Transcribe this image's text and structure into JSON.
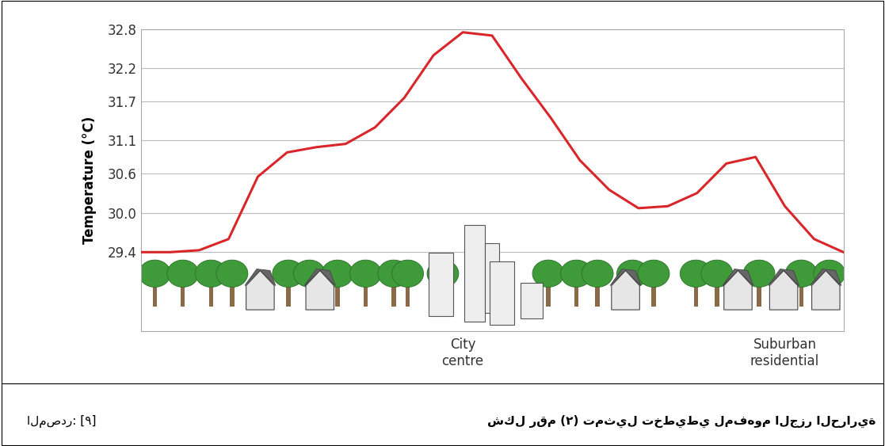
{
  "chart_data": {
    "type": "line",
    "y_label": "Temperature (°C)",
    "categories": [
      null,
      null,
      null,
      null,
      null,
      null,
      null,
      null,
      null,
      null,
      null,
      "City centre",
      null,
      null,
      null,
      null,
      null,
      null,
      null,
      null,
      null,
      null,
      "Suburban residential",
      null,
      null
    ],
    "values": [
      29.4,
      29.4,
      29.43,
      29.6,
      30.55,
      30.92,
      31.0,
      31.05,
      31.3,
      31.75,
      32.4,
      32.75,
      32.7,
      32.05,
      31.45,
      30.8,
      30.35,
      30.07,
      30.1,
      30.3,
      30.75,
      30.85,
      30.1,
      29.6,
      29.4
    ],
    "color": "#d9262b",
    "ylim": [
      28.2,
      32.8
    ],
    "yticks": [
      29.4,
      30.0,
      30.6,
      31.1,
      31.7,
      32.2,
      32.8
    ],
    "grid": true
  },
  "figure_caption": {
    "title": "شكل رقم (٢) تمثيل تخطيطي لمفهوم الجزر الحرارية",
    "source": "المصدر: [٩]"
  }
}
